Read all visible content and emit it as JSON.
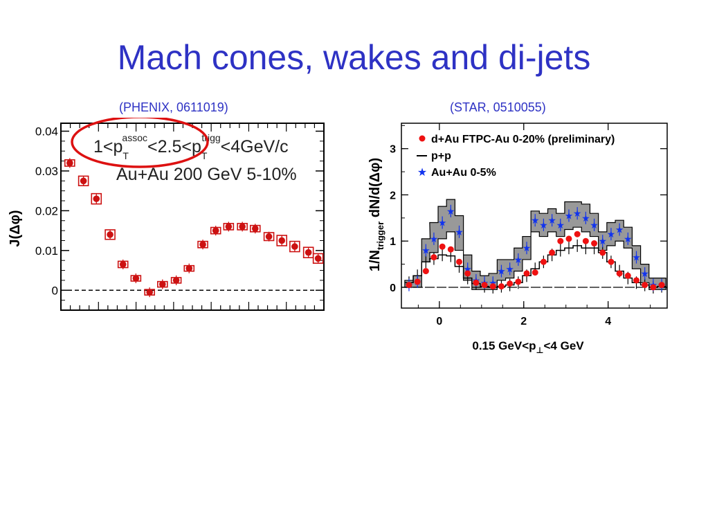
{
  "slide": {
    "title": "Mach cones, wakes and di-jets",
    "left_source": "(PHENIX, 0611019)",
    "right_source": "(STAR, 0510055)"
  },
  "colors": {
    "title": "#2e32c4",
    "phenix_marker": "#cc1111",
    "highlight_ellipse": "#dd1111",
    "star_dau": "#ee1111",
    "star_auau": "#1133ee",
    "star_band": "#999999"
  },
  "chart_data": [
    {
      "type": "scatter",
      "title": "",
      "ylabel": "J(Δφ)",
      "xlabel": "",
      "ylim": [
        -0.005,
        0.042
      ],
      "xlim": [
        0.0,
        3.14159
      ],
      "yticks": [
        0,
        0.01,
        0.02,
        0.03,
        0.04
      ],
      "ytick_labels": [
        "0",
        "0.01",
        "0.02",
        "0.03",
        "0.04"
      ],
      "annotation": {
        "line1_prefix": "1<p",
        "line1_sub1": "T",
        "line1_sup1": "assoc",
        "line1_mid": "<2.5<p",
        "line1_sub2": "T",
        "line1_sup2": "trigg",
        "line1_suffix": "<4GeV/c",
        "line2": "Au+Au 200 GeV 5-10%"
      },
      "reference_line_y": 0,
      "series": [
        {
          "x": [
            0.05,
            0.22,
            0.38,
            0.55,
            0.71,
            0.87,
            1.04,
            1.2,
            1.37,
            1.53,
            1.7,
            1.86,
            2.02,
            2.19,
            2.35,
            2.52,
            2.68,
            2.84,
            3.01,
            3.13
          ],
          "values": [
            0.032,
            0.0275,
            0.023,
            0.014,
            0.0065,
            0.003,
            -0.0005,
            0.0015,
            0.0025,
            0.0055,
            0.0115,
            0.015,
            0.016,
            0.016,
            0.0155,
            0.0135,
            0.0125,
            0.011,
            0.0095,
            0.008
          ],
          "sys_error": [
            0.0008,
            0.0012,
            0.0013,
            0.0012,
            0.0008,
            0.0006,
            0.0005,
            0.0005,
            0.0006,
            0.0006,
            0.0008,
            0.0008,
            0.0008,
            0.0008,
            0.0008,
            0.001,
            0.0013,
            0.0013,
            0.0013,
            0.0012
          ]
        }
      ]
    },
    {
      "type": "scatter",
      "title": "",
      "ylabel": "1/N",
      "ylabel_sub": "trigger",
      "ylabel_suffix": " dN/d(Δφ)",
      "xlabel": "0.15 GeV<p",
      "xlabel_sub": "⊥",
      "xlabel_suffix": "<4 GeV",
      "xlim": [
        -0.9,
        5.4
      ],
      "ylim": [
        -0.45,
        3.55
      ],
      "xticks": [
        0,
        2,
        4
      ],
      "xtick_labels": [
        "0",
        "2",
        "4"
      ],
      "yticks": [
        0,
        1,
        2,
        3
      ],
      "ytick_labels": [
        "0",
        "1",
        "2",
        "3"
      ],
      "legend_position": "top-left",
      "series": [
        {
          "name": "d+Au FTPC-Au 0-20% (preliminary)",
          "x": [
            -0.72,
            -0.52,
            -0.32,
            -0.13,
            0.07,
            0.27,
            0.47,
            0.67,
            0.87,
            1.07,
            1.27,
            1.47,
            1.67,
            1.87,
            2.07,
            2.27,
            2.47,
            2.67,
            2.87,
            3.07,
            3.27,
            3.47,
            3.67,
            3.87,
            4.07,
            4.27,
            4.47,
            4.67,
            4.87,
            5.07,
            5.27
          ],
          "values": [
            0.05,
            0.12,
            0.35,
            0.65,
            0.88,
            0.82,
            0.55,
            0.3,
            0.1,
            0.05,
            0.02,
            0.02,
            0.08,
            0.12,
            0.3,
            0.32,
            0.55,
            0.75,
            1.0,
            1.05,
            1.15,
            1.0,
            0.95,
            0.75,
            0.55,
            0.3,
            0.25,
            0.15,
            0.05,
            0.0,
            0.05
          ]
        },
        {
          "name": "p+p",
          "x": [
            -0.72,
            -0.52,
            -0.32,
            -0.13,
            0.07,
            0.27,
            0.47,
            0.67,
            0.87,
            1.07,
            1.27,
            1.47,
            1.67,
            1.87,
            2.07,
            2.27,
            2.47,
            2.67,
            2.87,
            3.07,
            3.27,
            3.47,
            3.67,
            3.87,
            4.07,
            4.27,
            4.47,
            4.67,
            4.87,
            5.07,
            5.27
          ],
          "values": [
            0.1,
            0.25,
            0.55,
            0.62,
            0.7,
            0.68,
            0.45,
            0.2,
            0.08,
            0.02,
            0.0,
            0.02,
            0.05,
            0.1,
            0.25,
            0.4,
            0.55,
            0.7,
            0.8,
            0.85,
            0.9,
            0.85,
            0.85,
            0.75,
            0.55,
            0.35,
            0.2,
            0.1,
            0.05,
            0.0,
            0.02
          ]
        },
        {
          "name": "Au+Au 0-5%",
          "x": [
            -0.72,
            -0.52,
            -0.32,
            -0.13,
            0.07,
            0.27,
            0.47,
            0.67,
            0.87,
            1.07,
            1.27,
            1.47,
            1.67,
            1.87,
            2.07,
            2.27,
            2.47,
            2.67,
            2.87,
            3.07,
            3.27,
            3.47,
            3.67,
            3.87,
            4.07,
            4.27,
            4.47,
            4.67,
            4.87,
            5.07,
            5.27
          ],
          "values": [
            0.05,
            0.12,
            0.8,
            1.05,
            1.4,
            1.65,
            1.2,
            0.4,
            0.15,
            0.1,
            0.1,
            0.35,
            0.4,
            0.6,
            0.85,
            1.45,
            1.35,
            1.45,
            1.35,
            1.55,
            1.6,
            1.5,
            1.35,
            1.0,
            1.15,
            1.25,
            1.05,
            0.65,
            0.3,
            0.05,
            0.05
          ],
          "band_low": [
            0.0,
            0.0,
            0.55,
            0.75,
            1.05,
            1.2,
            0.8,
            0.15,
            -0.05,
            -0.05,
            -0.05,
            0.15,
            0.2,
            0.35,
            0.6,
            1.2,
            1.1,
            1.2,
            1.1,
            1.25,
            1.3,
            1.2,
            1.1,
            0.8,
            0.9,
            1.0,
            0.85,
            0.4,
            0.1,
            -0.05,
            -0.05
          ],
          "band_high": [
            0.15,
            0.25,
            1.05,
            1.4,
            1.75,
            1.9,
            1.55,
            0.7,
            0.35,
            0.25,
            0.3,
            0.6,
            0.6,
            0.85,
            1.1,
            1.65,
            1.6,
            1.7,
            1.6,
            1.85,
            1.85,
            1.8,
            1.6,
            1.2,
            1.4,
            1.45,
            1.3,
            0.9,
            0.5,
            0.2,
            0.2
          ]
        }
      ]
    }
  ]
}
